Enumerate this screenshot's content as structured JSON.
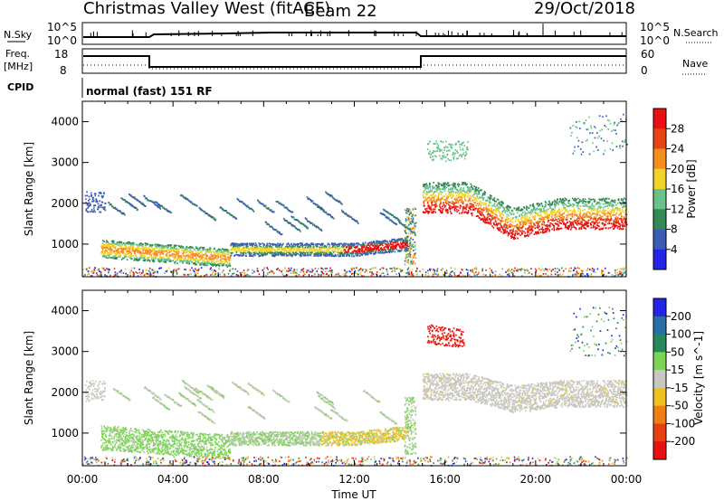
{
  "header": {
    "station": "Christmas Valley West (fitACF)",
    "beam": "Beam 22",
    "date": "29/Oct/2018"
  },
  "strips": {
    "nsky_label": "N.Sky",
    "nsky_ticks": [
      "10^5",
      "10^0"
    ],
    "nsearch_label": "N.Search",
    "nsearch_ticks": [
      "10^5",
      "10^0"
    ],
    "freq_label_line1": "Freq.",
    "freq_label_line2": "[MHz]",
    "freq_ticks": [
      "18",
      "8"
    ],
    "nave_label": "Nave",
    "nave_ticks": [
      "60",
      "0"
    ],
    "cpid_label": "CPID",
    "cpid_text": "normal (fast) 151 RF"
  },
  "colors": {
    "power": [
      "#2424e6",
      "#3c5bb4",
      "#348a57",
      "#67c38a",
      "#f2d327",
      "#f58f1c",
      "#e84314",
      "#e81010"
    ],
    "velocity": [
      "#2424e6",
      "#2b6fa8",
      "#27895a",
      "#7bd455",
      "#c8c8c0",
      "#f0c020",
      "#f07e14",
      "#e84010",
      "#e81010"
    ]
  },
  "chart_data": [
    {
      "type": "heatmap",
      "name": "power",
      "ylabel": "Slant Range [km]",
      "xlabel": "",
      "x_ticks": [
        "00:00",
        "04:00",
        "08:00",
        "12:00",
        "16:00",
        "20:00",
        "00:00"
      ],
      "xlim_hours": [
        0,
        24
      ],
      "y_ticks": [
        1000,
        2000,
        3000,
        4000
      ],
      "ylim": [
        200,
        4500
      ],
      "colorbar_label": "Power [dB]",
      "colorbar_ticks": [
        4,
        8,
        12,
        16,
        20,
        24,
        28
      ],
      "colorbar_range": [
        0,
        32
      ],
      "features": [
        {
          "time_start": 0.8,
          "time_end": 6.5,
          "range_start": 650,
          "range_end": 1100,
          "level": "12-24 dB"
        },
        {
          "time_start": 6.5,
          "time_end": 14.3,
          "range_start": 700,
          "range_end": 1000,
          "level": "8-28 dB"
        },
        {
          "time_start": 15.0,
          "time_end": 24.0,
          "range_start": 1400,
          "range_end": 2500,
          "level": "12-28 dB"
        }
      ]
    },
    {
      "type": "heatmap",
      "name": "velocity",
      "ylabel": "Slant Range [km]",
      "xlabel": "Time UT",
      "x_ticks": [
        "00:00",
        "04:00",
        "08:00",
        "12:00",
        "16:00",
        "20:00",
        "00:00"
      ],
      "xlim_hours": [
        0,
        24
      ],
      "y_ticks": [
        1000,
        2000,
        3000,
        4000
      ],
      "ylim": [
        200,
        4500
      ],
      "colorbar_label": "Velocity [m s^-1]",
      "colorbar_ticks": [
        "200",
        "100",
        "50",
        "15",
        "-15",
        "-50",
        "-100",
        "-200"
      ],
      "colorbar_range": [
        -250,
        250
      ],
      "features": [
        {
          "time_start": 0.8,
          "time_end": 6.5,
          "range_start": 650,
          "range_end": 1200,
          "level": "15-50 m/s"
        },
        {
          "time_start": 10.5,
          "time_end": 14.2,
          "range_start": 700,
          "range_end": 1100,
          "level": "-15 to -50 m/s"
        },
        {
          "time_start": 15.0,
          "time_end": 24.0,
          "range_start": 1500,
          "range_end": 2500,
          "level": "-15 to 15 m/s"
        },
        {
          "time_start": 15.2,
          "time_end": 16.8,
          "range_start": 3200,
          "range_end": 3700,
          "level": "-200 m/s"
        }
      ]
    }
  ]
}
